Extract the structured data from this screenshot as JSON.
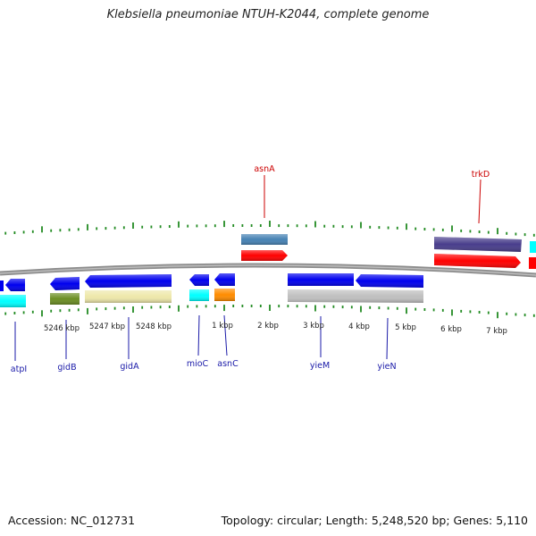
{
  "title": "Klebsiella pneumoniae NTUH-K2044, complete genome",
  "footer": {
    "accession": "Accession: NC_012731",
    "info": "Topology: circular; Length: 5,248,520 bp; Genes: 5,110"
  },
  "colors": {
    "backbone": "#8c8c8c",
    "tick": "#228b22",
    "top_label": "#cc0000",
    "bottom_label": "#1a1aa8",
    "cds_red": "#ff0000",
    "cds_blue": "#0000ee",
    "cds_steel": "#4682b4",
    "cds_slate": "#483d8b",
    "cds_cyan": "#00ffff",
    "cds_olive": "#6b8e23",
    "cds_khaki": "#eee8aa",
    "cds_orange": "#ff8c00",
    "cds_gray": "#c0c0c0"
  },
  "scale_labels": [
    "5246 kbp",
    "5247 kbp",
    "5248 kbp",
    "1 kbp",
    "2 kbp",
    "3 kbp",
    "4 kbp",
    "5 kbp",
    "6 kbp",
    "7 kbp"
  ],
  "top_gene_labels": [
    "asnA",
    "trkD"
  ],
  "bottom_gene_labels": [
    "atpI",
    "gidB",
    "gidA",
    "mioC",
    "asnC",
    "yieM",
    "yieN"
  ]
}
